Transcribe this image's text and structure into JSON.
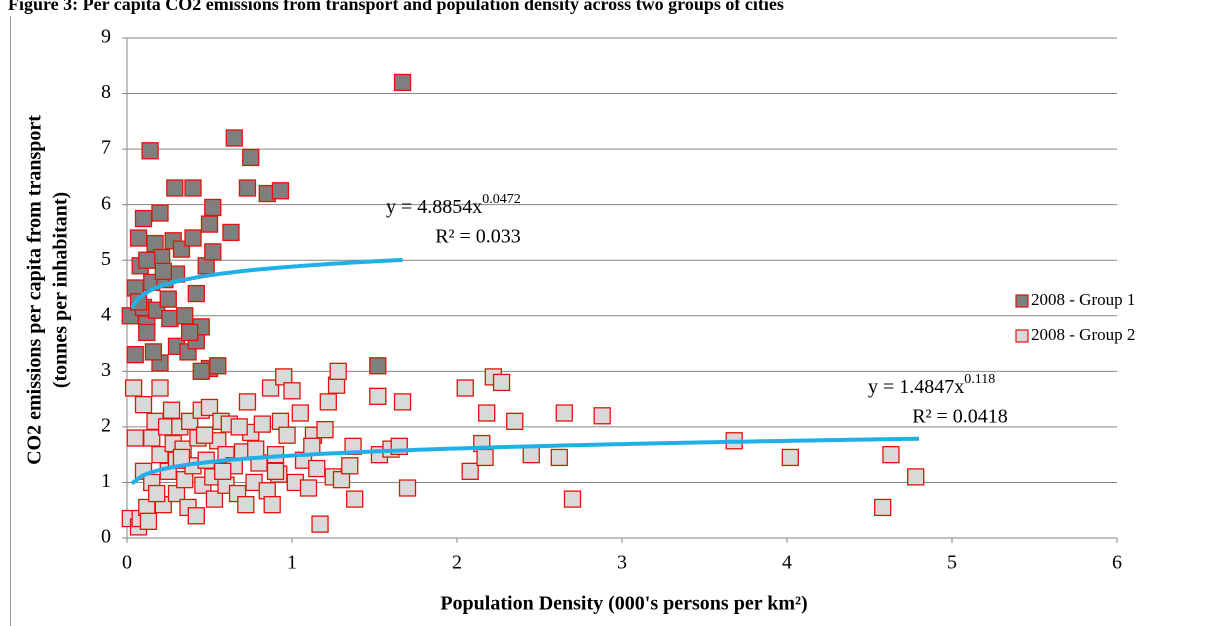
{
  "chart_data": {
    "type": "scatter",
    "title": "Figure 3: Per capita CO2 emissions from transport and population density across two groups of cities",
    "x_label": "Population Density (000's persons per km²)",
    "y_label_lines": [
      "CO2 emissions per capita from transport",
      "(tonnes per inhabitant)"
    ],
    "xlim": [
      0,
      6
    ],
    "xticks": [
      0,
      1,
      2,
      3,
      4,
      5,
      6
    ],
    "ylim": [
      0,
      9
    ],
    "yticks": [
      0,
      1,
      2,
      3,
      4,
      5,
      6,
      7,
      8,
      9
    ],
    "grid": true,
    "legend": "right",
    "series": [
      {
        "name": "2008 - Group 1",
        "color": "#7f7f7f",
        "edge": "#e3120b",
        "x": [
          0.02,
          0.05,
          0.07,
          0.08,
          0.05,
          0.1,
          0.12,
          0.14,
          0.1,
          0.12,
          0.15,
          0.17,
          0.18,
          0.2,
          0.2,
          0.21,
          0.23,
          0.25,
          0.26,
          0.28,
          0.29,
          0.3,
          0.3,
          0.33,
          0.35,
          0.37,
          0.4,
          0.4,
          0.42,
          0.42,
          0.45,
          0.48,
          0.5,
          0.5,
          0.52,
          0.52,
          0.55,
          0.63,
          0.65,
          0.73,
          0.75,
          0.85,
          0.93,
          1.52,
          1.67,
          0.07,
          0.12,
          0.16,
          0.22,
          0.38,
          0.45
        ],
        "values": [
          4.0,
          4.5,
          5.4,
          4.9,
          3.3,
          5.75,
          3.85,
          6.97,
          4.15,
          3.7,
          4.6,
          5.3,
          4.1,
          3.15,
          5.85,
          5.05,
          4.65,
          4.3,
          3.95,
          5.35,
          6.3,
          4.75,
          3.45,
          5.2,
          4.0,
          3.35,
          6.3,
          5.4,
          4.4,
          3.55,
          3.8,
          4.9,
          3.05,
          5.65,
          5.95,
          5.15,
          3.1,
          5.5,
          7.2,
          6.3,
          6.85,
          6.2,
          6.25,
          3.1,
          8.2,
          4.25,
          5.0,
          3.35,
          4.8,
          3.7,
          3.0
        ]
      },
      {
        "name": "2008 - Group 2",
        "color": "#d9d9d9",
        "edge": "#e3120b",
        "x": [
          0.02,
          0.04,
          0.05,
          0.07,
          0.08,
          0.1,
          0.1,
          0.12,
          0.13,
          0.15,
          0.15,
          0.17,
          0.2,
          0.2,
          0.22,
          0.24,
          0.25,
          0.27,
          0.28,
          0.3,
          0.3,
          0.32,
          0.34,
          0.35,
          0.37,
          0.38,
          0.4,
          0.42,
          0.43,
          0.45,
          0.46,
          0.48,
          0.5,
          0.52,
          0.53,
          0.55,
          0.57,
          0.6,
          0.6,
          0.62,
          0.65,
          0.67,
          0.7,
          0.72,
          0.73,
          0.75,
          0.77,
          0.8,
          0.82,
          0.85,
          0.87,
          0.88,
          0.9,
          0.92,
          0.93,
          0.95,
          0.97,
          1.0,
          1.02,
          1.05,
          1.07,
          1.1,
          1.13,
          1.15,
          1.17,
          1.2,
          1.22,
          1.25,
          1.27,
          1.28,
          1.3,
          1.35,
          1.37,
          1.38,
          1.52,
          1.53,
          1.6,
          1.65,
          1.67,
          1.7,
          2.05,
          2.08,
          2.15,
          2.17,
          2.18,
          2.22,
          2.27,
          2.35,
          2.45,
          2.62,
          2.65,
          2.7,
          2.88,
          3.68,
          4.02,
          4.58,
          4.63,
          4.78,
          0.18,
          0.58,
          0.68,
          0.78,
          1.12,
          0.33,
          0.47,
          0.9
        ],
        "values": [
          0.35,
          2.7,
          1.8,
          0.2,
          0.35,
          1.2,
          2.4,
          0.55,
          0.3,
          1.0,
          1.8,
          2.1,
          2.7,
          1.5,
          0.6,
          2.0,
          1.2,
          2.3,
          1.7,
          1.4,
          0.8,
          2.0,
          1.6,
          1.05,
          0.55,
          2.1,
          1.3,
          0.4,
          1.8,
          2.3,
          0.95,
          1.4,
          2.35,
          1.1,
          0.7,
          1.75,
          2.1,
          1.5,
          0.95,
          2.05,
          1.3,
          0.8,
          1.55,
          0.6,
          2.45,
          1.9,
          1.0,
          1.35,
          2.05,
          0.85,
          2.7,
          0.6,
          1.5,
          1.15,
          2.1,
          2.9,
          1.85,
          2.65,
          1.0,
          2.25,
          1.4,
          0.9,
          1.85,
          1.25,
          0.25,
          1.95,
          2.45,
          1.1,
          2.75,
          3.0,
          1.05,
          1.3,
          1.65,
          0.7,
          2.55,
          1.5,
          1.6,
          1.65,
          2.45,
          0.9,
          2.7,
          1.2,
          1.7,
          1.45,
          2.25,
          2.9,
          2.8,
          2.1,
          1.5,
          1.45,
          2.25,
          0.7,
          2.2,
          1.75,
          1.45,
          0.55,
          1.5,
          1.1,
          0.8,
          1.2,
          2.0,
          1.6,
          1.65,
          1.45,
          1.85,
          1.2
        ]
      }
    ],
    "trendlines": [
      {
        "equation": "y = 4.8854x",
        "exponent_label": "0.0472",
        "r2": "R² = 0.033",
        "coef": 4.8854,
        "exp": 0.0472,
        "x_range": [
          0.03,
          1.67
        ],
        "color": "#1fb0e8"
      },
      {
        "equation": "y = 1.4847x",
        "exponent_label": "0.118",
        "r2": "R² = 0.0418",
        "coef": 1.4847,
        "exp": 0.118,
        "x_range": [
          0.03,
          4.8
        ],
        "color": "#1fb0e8"
      }
    ]
  }
}
